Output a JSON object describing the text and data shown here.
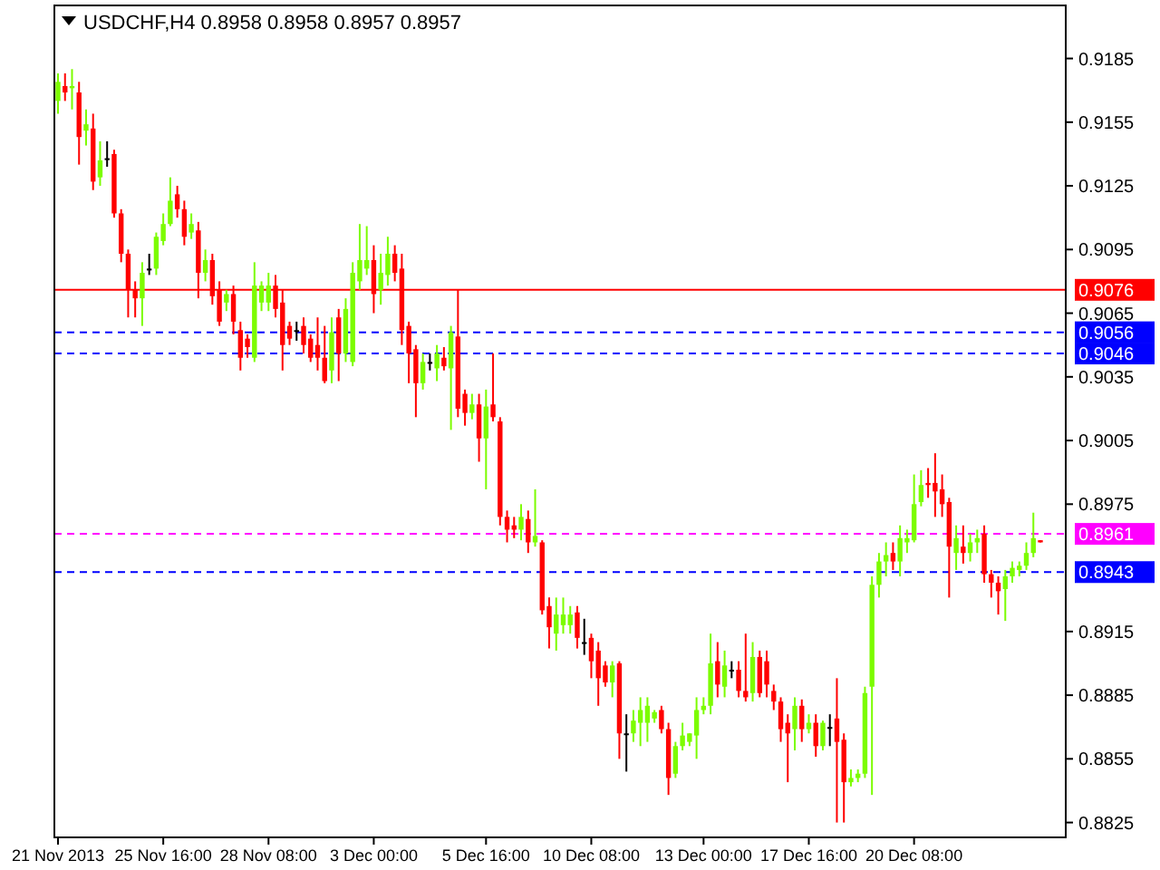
{
  "chart_data": {
    "type": "candlestick",
    "title": "USDCHF,H4  0.8958 0.8958 0.8957 0.8957",
    "categories": [
      "21 Nov 2013",
      null,
      null,
      null,
      null,
      null,
      null,
      null,
      null,
      null,
      null,
      null,
      null,
      null,
      null,
      "25 Nov 16:00",
      null,
      null,
      null,
      null,
      null,
      null,
      null,
      null,
      null,
      null,
      null,
      null,
      null,
      null,
      "28 Nov 08:00",
      null,
      null,
      null,
      null,
      null,
      null,
      null,
      null,
      null,
      null,
      null,
      null,
      null,
      null,
      "3 Dec 00:00",
      null,
      null,
      null,
      null,
      null,
      null,
      null,
      null,
      null,
      null,
      null,
      null,
      null,
      null,
      null,
      "5 Dec 16:00",
      null,
      null,
      null,
      null,
      null,
      null,
      null,
      null,
      null,
      null,
      null,
      null,
      null,
      null,
      "10 Dec 08:00",
      null,
      null,
      null,
      null,
      null,
      null,
      null,
      null,
      null,
      null,
      null,
      null,
      null,
      null,
      null,
      "13 Dec 00:00",
      null,
      null,
      null,
      null,
      null,
      null,
      null,
      null,
      null,
      null,
      null,
      null,
      null,
      null,
      "17 Dec 16:00",
      null,
      null,
      null,
      null,
      null,
      null,
      null,
      null,
      null,
      null,
      null,
      null,
      null,
      null,
      "20 Dec 08:00",
      null,
      null,
      null,
      null,
      null,
      null,
      null,
      null,
      null,
      null,
      null,
      null,
      null,
      null,
      null,
      null,
      null,
      null
    ],
    "ohlc": [
      [
        0.9165,
        0.9178,
        0.9159,
        0.9174
      ],
      [
        0.9172,
        0.9178,
        0.9165,
        0.9169
      ],
      [
        0.9171,
        0.918,
        0.9161,
        0.9172
      ],
      [
        0.9169,
        0.9174,
        0.9135,
        0.9148
      ],
      [
        0.9151,
        0.9161,
        0.9144,
        0.9154
      ],
      [
        0.9152,
        0.9159,
        0.9123,
        0.9127
      ],
      [
        0.9129,
        0.9146,
        0.9125,
        0.9137
      ],
      [
        0.9138,
        0.9146,
        0.9134,
        0.9138
      ],
      [
        0.914,
        0.9142,
        0.911,
        0.9112
      ],
      [
        0.9112,
        0.9114,
        0.9089,
        0.9093
      ],
      [
        0.9093,
        0.9095,
        0.9063,
        0.9076
      ],
      [
        0.9076,
        0.908,
        0.9063,
        0.9072
      ],
      [
        0.9072,
        0.9089,
        0.9059,
        0.9084
      ],
      [
        0.9086,
        0.9093,
        0.9083,
        0.9086
      ],
      [
        0.9086,
        0.9103,
        0.9083,
        0.9101
      ],
      [
        0.9099,
        0.9112,
        0.9097,
        0.9107
      ],
      [
        0.9107,
        0.9129,
        0.9106,
        0.9118
      ],
      [
        0.9121,
        0.9125,
        0.911,
        0.9114
      ],
      [
        0.9114,
        0.9118,
        0.9097,
        0.9101
      ],
      [
        0.9103,
        0.9112,
        0.91,
        0.9107
      ],
      [
        0.9104,
        0.9108,
        0.9072,
        0.9084
      ],
      [
        0.9084,
        0.9095,
        0.908,
        0.909
      ],
      [
        0.909,
        0.9093,
        0.9069,
        0.9073
      ],
      [
        0.9076,
        0.908,
        0.9059,
        0.9061
      ],
      [
        0.907,
        0.9076,
        0.9066,
        0.9074
      ],
      [
        0.9074,
        0.9078,
        0.9055,
        0.9061
      ],
      [
        0.9057,
        0.9061,
        0.9038,
        0.9044
      ],
      [
        0.9053,
        0.9055,
        0.9044,
        0.9049
      ],
      [
        0.9044,
        0.9089,
        0.9042,
        0.9078
      ],
      [
        0.907,
        0.908,
        0.9066,
        0.9078
      ],
      [
        0.907,
        0.9084,
        0.9066,
        0.9078
      ],
      [
        0.9078,
        0.9083,
        0.9063,
        0.9067
      ],
      [
        0.907,
        0.9076,
        0.9038,
        0.905
      ],
      [
        0.9059,
        0.9061,
        0.905,
        0.9053
      ],
      [
        0.9057,
        0.9061,
        0.9052,
        0.9057
      ],
      [
        0.9059,
        0.9063,
        0.9046,
        0.905
      ],
      [
        0.9053,
        0.9055,
        0.9042,
        0.9044
      ],
      [
        0.905,
        0.9063,
        0.9038,
        0.9044
      ],
      [
        0.9044,
        0.9059,
        0.9032,
        0.9033
      ],
      [
        0.9038,
        0.9063,
        0.9032,
        0.9056
      ],
      [
        0.9063,
        0.9067,
        0.9033,
        0.9046
      ],
      [
        0.9046,
        0.9072,
        0.9042,
        0.9067
      ],
      [
        0.9042,
        0.9089,
        0.904,
        0.9084
      ],
      [
        0.908,
        0.9107,
        0.9076,
        0.909
      ],
      [
        0.9086,
        0.9106,
        0.9083,
        0.909
      ],
      [
        0.909,
        0.9097,
        0.9065,
        0.9074
      ],
      [
        0.9076,
        0.9093,
        0.9069,
        0.9084
      ],
      [
        0.9083,
        0.9101,
        0.9078,
        0.9093
      ],
      [
        0.9093,
        0.9097,
        0.908,
        0.9084
      ],
      [
        0.9086,
        0.9093,
        0.905,
        0.9057
      ],
      [
        0.9059,
        0.9061,
        0.9032,
        0.9046
      ],
      [
        0.9048,
        0.905,
        0.9016,
        0.9032
      ],
      [
        0.9032,
        0.9046,
        0.9029,
        0.9042
      ],
      [
        0.9042,
        0.9046,
        0.9038,
        0.9042
      ],
      [
        0.9039,
        0.905,
        0.9033,
        0.9046
      ],
      [
        0.9044,
        0.9049,
        0.9038,
        0.904
      ],
      [
        0.9039,
        0.9059,
        0.901,
        0.9056
      ],
      [
        0.9054,
        0.9076,
        0.9016,
        0.902
      ],
      [
        0.9027,
        0.9029,
        0.9012,
        0.9018
      ],
      [
        0.9018,
        0.9027,
        0.9015,
        0.9022
      ],
      [
        0.9022,
        0.9027,
        0.8995,
        0.9006
      ],
      [
        0.9006,
        0.9029,
        0.8982,
        0.9021
      ],
      [
        0.9022,
        0.9046,
        0.9014,
        0.9016
      ],
      [
        0.9014,
        0.9016,
        0.8965,
        0.8969
      ],
      [
        0.8969,
        0.8972,
        0.8957,
        0.8963
      ],
      [
        0.8965,
        0.8969,
        0.8959,
        0.8963
      ],
      [
        0.8963,
        0.8975,
        0.8958,
        0.8969
      ],
      [
        0.8968,
        0.8972,
        0.8952,
        0.8957
      ],
      [
        0.8957,
        0.8982,
        0.8955,
        0.896
      ],
      [
        0.8957,
        0.8958,
        0.8923,
        0.8925
      ],
      [
        0.8927,
        0.8931,
        0.8907,
        0.8917
      ],
      [
        0.8914,
        0.8931,
        0.8906,
        0.8923
      ],
      [
        0.8918,
        0.8931,
        0.8914,
        0.8923
      ],
      [
        0.8918,
        0.8927,
        0.8914,
        0.8923
      ],
      [
        0.8924,
        0.8927,
        0.8907,
        0.8912
      ],
      [
        0.891,
        0.8921,
        0.8904,
        0.891
      ],
      [
        0.8912,
        0.8914,
        0.8893,
        0.8901
      ],
      [
        0.8906,
        0.891,
        0.888,
        0.8893
      ],
      [
        0.8899,
        0.8901,
        0.8889,
        0.8891
      ],
      [
        0.8891,
        0.8901,
        0.8884,
        0.8899
      ],
      [
        0.89,
        0.8901,
        0.8855,
        0.8867
      ],
      [
        0.8867,
        0.8876,
        0.8849,
        0.8867
      ],
      [
        0.8867,
        0.8878,
        0.8863,
        0.8873
      ],
      [
        0.8872,
        0.8884,
        0.8861,
        0.8878
      ],
      [
        0.8872,
        0.8884,
        0.8863,
        0.888
      ],
      [
        0.8874,
        0.8878,
        0.8872,
        0.8877
      ],
      [
        0.8878,
        0.888,
        0.8867,
        0.8869
      ],
      [
        0.8869,
        0.8872,
        0.8838,
        0.8846
      ],
      [
        0.8848,
        0.8863,
        0.8846,
        0.8861
      ],
      [
        0.8861,
        0.8872,
        0.8859,
        0.8866
      ],
      [
        0.8863,
        0.8867,
        0.8861,
        0.8867
      ],
      [
        0.8866,
        0.8884,
        0.8855,
        0.8878
      ],
      [
        0.8878,
        0.8884,
        0.8876,
        0.888
      ],
      [
        0.888,
        0.8914,
        0.8876,
        0.89
      ],
      [
        0.8901,
        0.891,
        0.8884,
        0.889
      ],
      [
        0.8889,
        0.8906,
        0.8884,
        0.8899
      ],
      [
        0.8897,
        0.8901,
        0.8893,
        0.8897
      ],
      [
        0.8897,
        0.8901,
        0.8884,
        0.8887
      ],
      [
        0.8887,
        0.8914,
        0.8882,
        0.8884
      ],
      [
        0.8886,
        0.891,
        0.8882,
        0.8903
      ],
      [
        0.8903,
        0.8906,
        0.8884,
        0.8886
      ],
      [
        0.8901,
        0.8906,
        0.8884,
        0.889
      ],
      [
        0.8887,
        0.889,
        0.8878,
        0.8882
      ],
      [
        0.8882,
        0.8884,
        0.8863,
        0.8869
      ],
      [
        0.8872,
        0.8876,
        0.8844,
        0.8867
      ],
      [
        0.8869,
        0.8884,
        0.8859,
        0.888
      ],
      [
        0.888,
        0.8883,
        0.8863,
        0.8869
      ],
      [
        0.8869,
        0.8876,
        0.8867,
        0.8872
      ],
      [
        0.8872,
        0.8876,
        0.8856,
        0.8861
      ],
      [
        0.8861,
        0.8873,
        0.8859,
        0.8872
      ],
      [
        0.887,
        0.8876,
        0.8861,
        0.887
      ],
      [
        0.8874,
        0.8893,
        0.8825,
        0.8863
      ],
      [
        0.8864,
        0.8867,
        0.8825,
        0.8844
      ],
      [
        0.8844,
        0.885,
        0.8842,
        0.8846
      ],
      [
        0.8846,
        0.885,
        0.8844,
        0.8848
      ],
      [
        0.8848,
        0.8889,
        0.8846,
        0.8886
      ],
      [
        0.8889,
        0.8941,
        0.8838,
        0.8937
      ],
      [
        0.8937,
        0.8952,
        0.8931,
        0.8948
      ],
      [
        0.8948,
        0.8957,
        0.8941,
        0.8951
      ],
      [
        0.8952,
        0.8957,
        0.8944,
        0.8948
      ],
      [
        0.8948,
        0.8965,
        0.8941,
        0.8959
      ],
      [
        0.8957,
        0.8963,
        0.8952,
        0.8959
      ],
      [
        0.8958,
        0.8989,
        0.8957,
        0.8975
      ],
      [
        0.8976,
        0.8991,
        0.8974,
        0.8984
      ],
      [
        0.8985,
        0.8992,
        0.8978,
        0.8984
      ],
      [
        0.8985,
        0.8999,
        0.8969,
        0.8981
      ],
      [
        0.8982,
        0.8989,
        0.8969,
        0.8975
      ],
      [
        0.8976,
        0.8978,
        0.8931,
        0.8955
      ],
      [
        0.8952,
        0.8965,
        0.8944,
        0.8959
      ],
      [
        0.8955,
        0.8965,
        0.8947,
        0.8952
      ],
      [
        0.8952,
        0.8961,
        0.8948,
        0.8957
      ],
      [
        0.8957,
        0.8963,
        0.8952,
        0.8959
      ],
      [
        0.8961,
        0.8965,
        0.8938,
        0.8942
      ],
      [
        0.8942,
        0.8944,
        0.8931,
        0.8938
      ],
      [
        0.8938,
        0.8941,
        0.8923,
        0.8934
      ],
      [
        0.8935,
        0.8944,
        0.892,
        0.8941
      ],
      [
        0.8941,
        0.8948,
        0.8938,
        0.8945
      ],
      [
        0.8944,
        0.8948,
        0.8941,
        0.8946
      ],
      [
        0.8946,
        0.8957,
        0.8944,
        0.8952
      ],
      [
        0.8952,
        0.8971,
        0.895,
        0.8959
      ],
      [
        0.8958,
        0.8958,
        0.8957,
        0.8957
      ]
    ],
    "ylim": [
      0.8818,
      0.921
    ],
    "yticks": [
      0.9185,
      0.9155,
      0.9125,
      0.9095,
      0.9065,
      0.9035,
      0.9005,
      0.8975,
      0.8915,
      0.8885,
      0.8855,
      0.8825
    ],
    "ref_lines": [
      {
        "axis": "y",
        "value": 0.9076,
        "label": "0.9076",
        "color": "#ff0000",
        "line_style": "solid"
      },
      {
        "axis": "y",
        "value": 0.9056,
        "label": "0.9056",
        "color": "#0000ff",
        "line_style": "dashed"
      },
      {
        "axis": "y",
        "value": 0.9046,
        "label": "0.9046",
        "color": "#0000ff",
        "line_style": "dashed"
      },
      {
        "axis": "y",
        "value": 0.8961,
        "label": "0.8961",
        "color": "#ff00ff",
        "line_style": "dashed"
      },
      {
        "axis": "y",
        "value": 0.8943,
        "label": "0.8943",
        "color": "#0000ff",
        "line_style": "dashed"
      }
    ],
    "grid": false
  }
}
